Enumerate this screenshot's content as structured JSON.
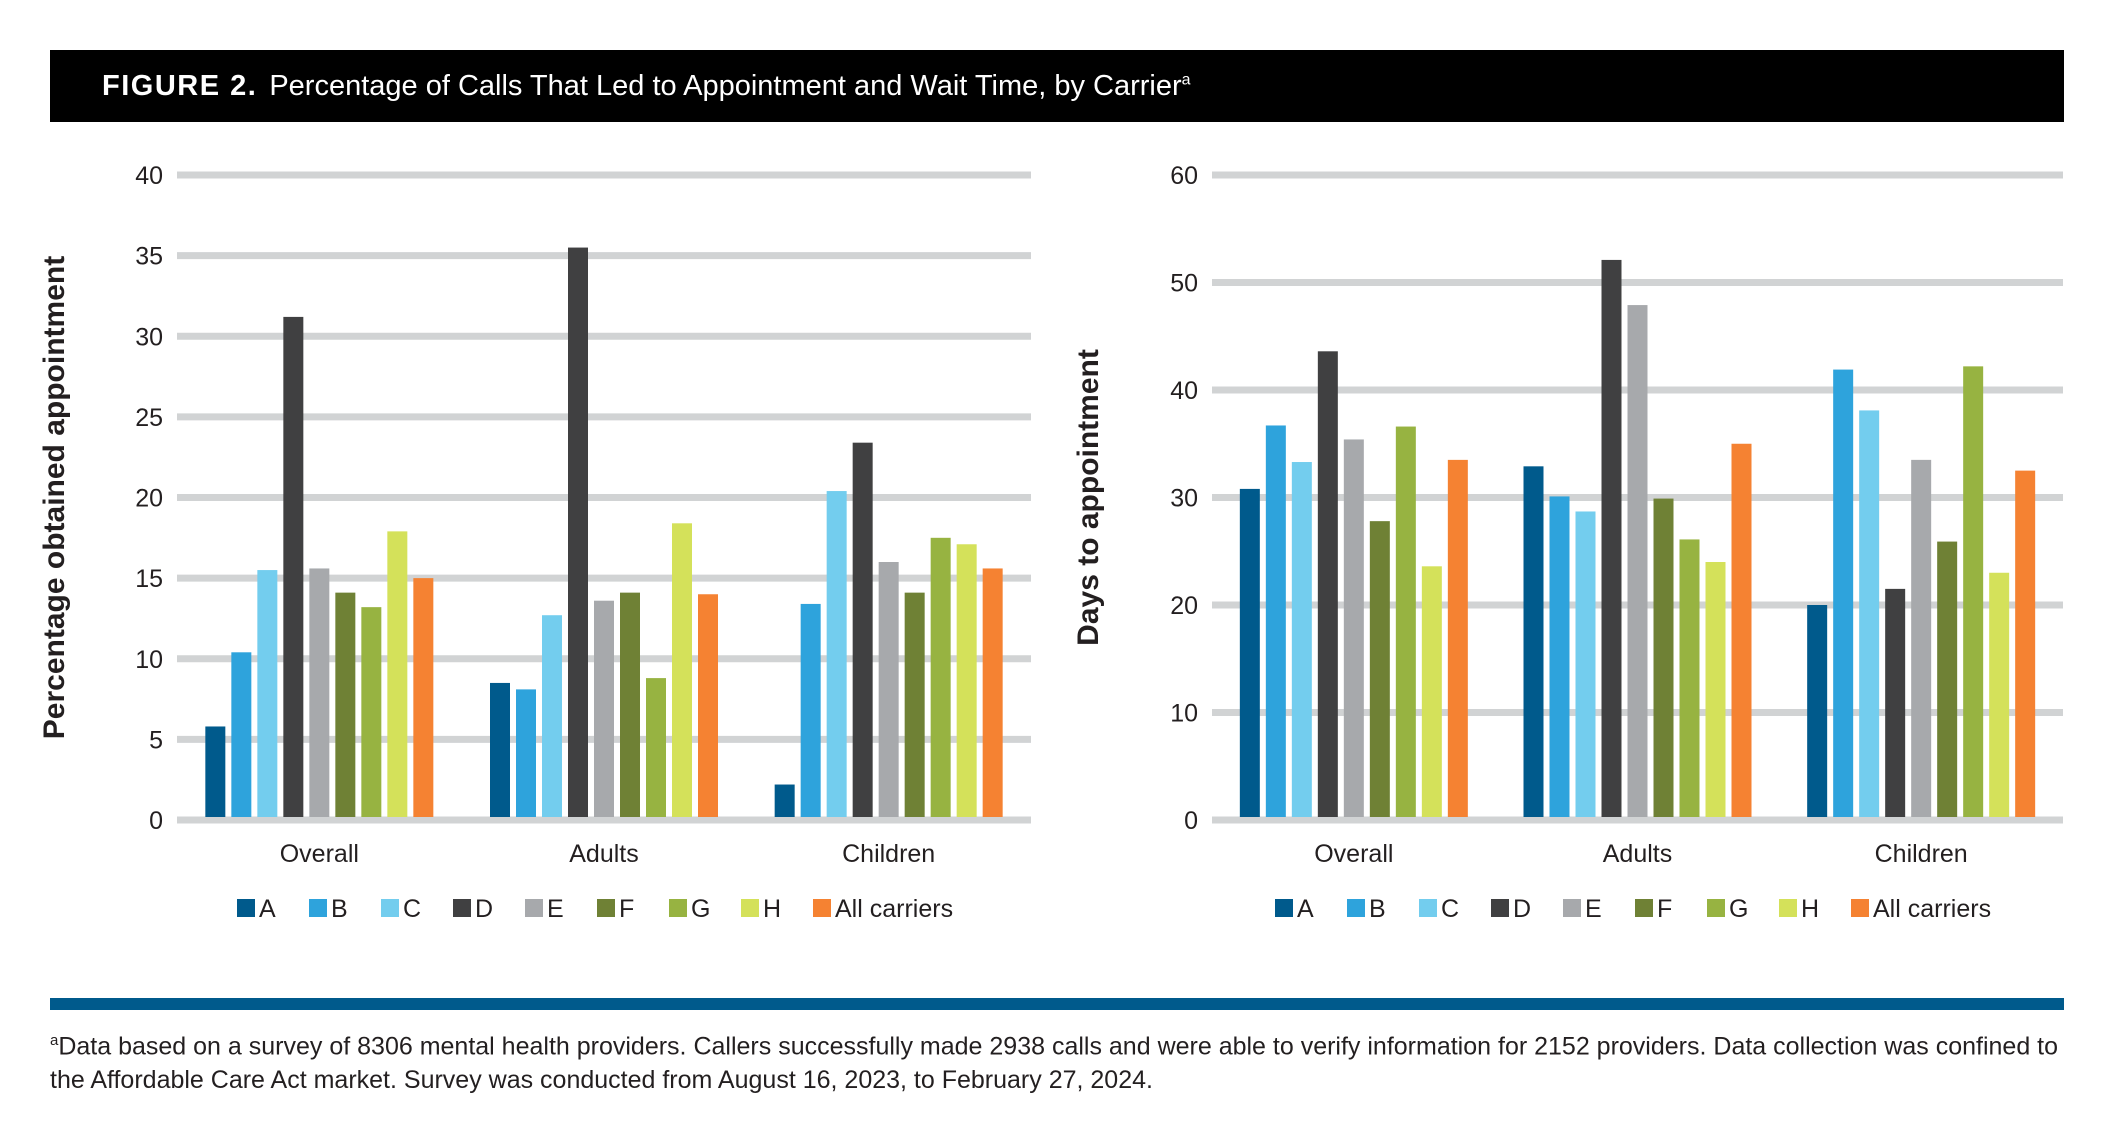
{
  "figure": {
    "label": "FIGURE 2.",
    "title": "Percentage of Calls That Led to Appointment and Wait Time, by Carrier",
    "title_note": "a"
  },
  "colors": {
    "A": "#005a8c",
    "B": "#2ea3dc",
    "C": "#73cdee",
    "D": "#404041",
    "E": "#a7a9ac",
    "F": "#6f8135",
    "G": "#97b341",
    "H": "#d4e15a",
    "All carriers": "#f58232",
    "gridline": "#d1d3d4",
    "rule": "#005a8c"
  },
  "chart_data": [
    {
      "type": "bar",
      "ylabel": "Percentage obtained appointment",
      "xlabel": "",
      "ylim": [
        0,
        40
      ],
      "yticks": [
        0,
        5,
        10,
        15,
        20,
        25,
        30,
        35,
        40
      ],
      "grid": true,
      "legend": "bottom",
      "categories": [
        "Overall",
        "Adults",
        "Children"
      ],
      "series": [
        {
          "name": "A",
          "values": [
            5.8,
            8.5,
            2.2
          ]
        },
        {
          "name": "B",
          "values": [
            10.4,
            8.1,
            13.4
          ]
        },
        {
          "name": "C",
          "values": [
            15.5,
            12.7,
            20.4
          ]
        },
        {
          "name": "D",
          "values": [
            31.2,
            35.5,
            23.4
          ]
        },
        {
          "name": "E",
          "values": [
            15.6,
            13.6,
            16.0
          ]
        },
        {
          "name": "F",
          "values": [
            14.1,
            14.1,
            14.1
          ]
        },
        {
          "name": "G",
          "values": [
            13.2,
            8.8,
            17.5
          ]
        },
        {
          "name": "H",
          "values": [
            17.9,
            18.4,
            17.1
          ]
        },
        {
          "name": "All carriers",
          "values": [
            15.0,
            14.0,
            15.6
          ]
        }
      ]
    },
    {
      "type": "bar",
      "ylabel": "Days to appointment",
      "xlabel": "",
      "ylim": [
        0,
        60
      ],
      "yticks": [
        0,
        10,
        20,
        30,
        40,
        50,
        60
      ],
      "grid": true,
      "legend": "bottom",
      "categories": [
        "Overall",
        "Adults",
        "Children"
      ],
      "series": [
        {
          "name": "A",
          "values": [
            30.8,
            32.9,
            20.0
          ]
        },
        {
          "name": "B",
          "values": [
            36.7,
            30.1,
            41.9
          ]
        },
        {
          "name": "C",
          "values": [
            33.3,
            28.7,
            38.1
          ]
        },
        {
          "name": "D",
          "values": [
            43.6,
            52.1,
            21.5
          ]
        },
        {
          "name": "E",
          "values": [
            35.4,
            47.9,
            33.5
          ]
        },
        {
          "name": "F",
          "values": [
            27.8,
            29.9,
            25.9
          ]
        },
        {
          "name": "G",
          "values": [
            36.6,
            26.1,
            42.2
          ]
        },
        {
          "name": "H",
          "values": [
            23.6,
            24.0,
            23.0
          ]
        },
        {
          "name": "All carriers",
          "values": [
            33.5,
            35.0,
            32.5
          ]
        }
      ]
    }
  ],
  "footnote": {
    "marker": "a",
    "text": "Data based on a survey of 8306 mental health providers. Callers successfully made 2938 calls and were able to verify information for 2152 providers. Data collection was confined to the Affordable Care Act market. Survey was conducted from August 16, 2023, to February 27, 2024."
  }
}
